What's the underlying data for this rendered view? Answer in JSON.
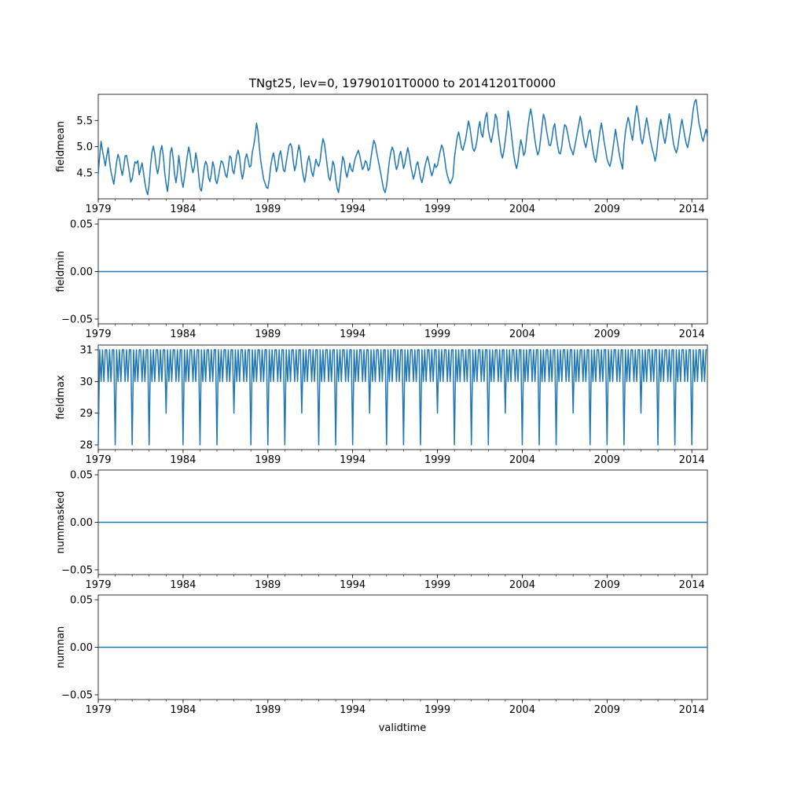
{
  "figure": {
    "title": "TNgt25, lev=0, 19790101T0000 to 20141201T0000",
    "xlabel": "validtime",
    "line_color": "#1f77b4"
  },
  "chart_data": [
    {
      "type": "line",
      "ylabel": "fieldmean",
      "x_range": [
        "1979-01",
        "2014-12"
      ],
      "xticks": [
        "1979",
        "1984",
        "1989",
        "1994",
        "1999",
        "2004",
        "2009",
        "2014"
      ],
      "yticks": [
        "4.5",
        "5.0",
        "5.5"
      ],
      "ylim": [
        4.0,
        6.0
      ],
      "series": [
        {
          "x_start": "1979-01",
          "x_step": "1 month",
          "values": [
            4.48,
            4.82,
            5.1,
            4.92,
            4.78,
            4.63,
            4.82,
            4.98,
            4.71,
            4.52,
            4.4,
            4.28,
            4.49,
            4.71,
            4.85,
            4.76,
            4.58,
            4.45,
            4.6,
            4.82,
            4.83,
            4.68,
            4.51,
            4.32,
            4.38,
            4.56,
            4.71,
            4.68,
            4.73,
            4.46,
            4.58,
            4.69,
            4.51,
            4.31,
            4.16,
            4.08,
            4.28,
            4.64,
            4.89,
            5.01,
            4.86,
            4.62,
            4.48,
            4.63,
            4.91,
            5.02,
            4.83,
            4.51,
            4.29,
            4.14,
            4.4,
            4.88,
            4.98,
            4.78,
            4.47,
            4.31,
            4.51,
            4.83,
            4.61,
            4.35,
            4.22,
            4.41,
            4.61,
            4.82,
            4.99,
            4.86,
            4.63,
            4.5,
            4.61,
            4.88,
            4.73,
            4.46,
            4.2,
            4.15,
            4.36,
            4.6,
            4.72,
            4.65,
            4.41,
            4.33,
            4.48,
            4.71,
            4.61,
            4.36,
            4.29,
            4.42,
            4.58,
            4.73,
            4.7,
            4.6,
            4.46,
            4.41,
            4.6,
            4.82,
            4.79,
            4.55,
            4.48,
            4.66,
            4.84,
            4.93,
            4.8,
            4.53,
            4.38,
            4.52,
            4.77,
            4.86,
            4.75,
            4.61,
            4.63,
            4.89,
            5.02,
            5.2,
            5.45,
            5.29,
            4.98,
            4.72,
            4.55,
            4.38,
            4.3,
            4.22,
            4.2,
            4.37,
            4.62,
            4.78,
            4.88,
            4.72,
            4.52,
            4.61,
            4.83,
            4.92,
            4.75,
            4.55,
            4.52,
            4.7,
            4.87,
            5.02,
            5.06,
            4.98,
            4.71,
            4.54,
            4.66,
            4.87,
            5.03,
            4.9,
            4.62,
            4.45,
            4.32,
            4.48,
            4.71,
            4.82,
            4.69,
            4.51,
            4.43,
            4.59,
            4.76,
            4.67,
            4.62,
            4.73,
            4.98,
            5.15,
            5.06,
            4.86,
            4.63,
            4.42,
            4.35,
            4.51,
            4.72,
            4.64,
            4.38,
            4.21,
            4.12,
            4.32,
            4.58,
            4.81,
            4.73,
            4.52,
            4.41,
            4.54,
            4.68,
            4.56,
            4.52,
            4.68,
            4.79,
            4.86,
            4.93,
            4.83,
            4.69,
            4.56,
            4.62,
            4.73,
            4.69,
            4.54,
            4.58,
            4.79,
            4.97,
            5.12,
            5.05,
            4.89,
            4.75,
            4.61,
            4.47,
            4.31,
            4.18,
            4.12,
            4.25,
            4.49,
            4.73,
            4.89,
            4.99,
            4.92,
            4.71,
            4.56,
            4.64,
            4.82,
            4.91,
            4.76,
            4.58,
            4.68,
            4.84,
            4.98,
            4.85,
            4.65,
            4.51,
            4.38,
            4.48,
            4.64,
            4.71,
            4.57,
            4.4,
            4.31,
            4.43,
            4.6,
            4.72,
            4.81,
            4.69,
            4.55,
            4.44,
            4.53,
            4.67,
            4.6,
            4.64,
            4.78,
            4.92,
            5.03,
            4.96,
            4.79,
            4.58,
            4.45,
            4.36,
            4.29,
            4.35,
            4.42,
            4.78,
            4.99,
            5.18,
            5.28,
            5.14,
            4.98,
            4.93,
            5.04,
            5.15,
            5.33,
            5.49,
            5.36,
            5.16,
            4.97,
            4.91,
            4.98,
            5.12,
            5.35,
            5.48,
            5.25,
            5.18,
            5.38,
            5.57,
            5.65,
            5.32,
            5.18,
            5.08,
            5.22,
            5.38,
            5.62,
            5.55,
            5.28,
            5.08,
            4.88,
            4.78,
            4.92,
            5.12,
            5.35,
            5.68,
            5.54,
            5.32,
            5.08,
            4.84,
            4.68,
            4.58,
            4.72,
            4.95,
            5.13,
            5.01,
            4.83,
            4.89,
            5.14,
            5.38,
            5.58,
            5.72,
            5.56,
            5.33,
            5.12,
            4.95,
            4.84,
            4.92,
            5.15,
            5.39,
            5.62,
            5.53,
            5.34,
            5.18,
            5.03,
            5.02,
            5.15,
            5.36,
            5.44,
            5.2,
            5.02,
            4.88,
            4.86,
            5.01,
            5.25,
            5.42,
            5.39,
            5.27,
            5.12,
            4.98,
            4.92,
            4.84,
            4.98,
            5.12,
            5.28,
            5.42,
            5.58,
            5.46,
            5.22,
            5.08,
            4.98,
            5.12,
            5.28,
            5.32,
            5.11,
            4.93,
            4.78,
            4.7,
            4.88,
            5.08,
            5.3,
            5.45,
            5.28,
            5.08,
            4.93,
            4.76,
            4.68,
            4.62,
            4.74,
            4.92,
            5.13,
            5.33,
            5.15,
            4.97,
            4.8,
            4.68,
            4.57,
            5.02,
            5.28,
            5.44,
            5.56,
            5.43,
            5.25,
            5.12,
            5.35,
            5.6,
            5.78,
            5.62,
            5.39,
            5.15,
            5.05,
            5.2,
            5.38,
            5.55,
            5.4,
            5.22,
            5.08,
            4.95,
            4.85,
            4.72,
            4.86,
            5.12,
            5.34,
            5.52,
            5.36,
            5.18,
            5.06,
            5.22,
            5.43,
            5.63,
            5.48,
            5.26,
            5.06,
            4.95,
            4.88,
            4.98,
            5.18,
            5.38,
            5.52,
            5.36,
            5.2,
            5.06,
            4.98,
            5.12,
            5.28,
            5.48,
            5.72,
            5.86,
            5.9,
            5.68,
            5.45,
            5.33,
            5.18,
            5.1,
            5.22,
            5.33,
            5.2
          ]
        }
      ]
    },
    {
      "type": "line",
      "ylabel": "fieldmin",
      "x_range": [
        "1979-01",
        "2014-12"
      ],
      "xticks": [
        "1979",
        "1984",
        "1989",
        "1994",
        "1999",
        "2004",
        "2009",
        "2014"
      ],
      "yticks": [
        "−0.05",
        "0.00",
        "0.05"
      ],
      "ylim": [
        -0.055,
        0.055
      ],
      "series": [
        {
          "x_start": "1979-01",
          "x_step": "1 month",
          "constant": 0.0
        }
      ]
    },
    {
      "type": "line",
      "ylabel": "fieldmax",
      "x_range": [
        "1979-01",
        "2014-12"
      ],
      "xticks": [
        "1979",
        "1984",
        "1989",
        "1994",
        "1999",
        "2004",
        "2009",
        "2014"
      ],
      "yticks": [
        "28",
        "29",
        "30",
        "31"
      ],
      "ylim": [
        27.85,
        31.15
      ],
      "series": [
        {
          "x_start": "1979-01",
          "x_step": "1 month",
          "description_pattern": "monthly day-count: 31/30 alternating, February dips to 28 or 29",
          "values": [
            28,
            31,
            30,
            31,
            30,
            31,
            31,
            30,
            31,
            30,
            31,
            31,
            28,
            31,
            30,
            31,
            30,
            31,
            31,
            30,
            31,
            30,
            31,
            31,
            28,
            31,
            30,
            31,
            30,
            31,
            31,
            30,
            31,
            30,
            31,
            31,
            28,
            31,
            30,
            31,
            30,
            31,
            31,
            30,
            31,
            30,
            31,
            31,
            29,
            31,
            30,
            31,
            30,
            31,
            31,
            30,
            31,
            30,
            31,
            31,
            28,
            31,
            30,
            31,
            30,
            31,
            31,
            30,
            31,
            30,
            31,
            31,
            28,
            31,
            30,
            31,
            30,
            31,
            31,
            30,
            31,
            30,
            31,
            31,
            28,
            31,
            30,
            31,
            30,
            31,
            31,
            30,
            31,
            30,
            31,
            31,
            29,
            31,
            30,
            31,
            30,
            31,
            31,
            30,
            31,
            30,
            31,
            31,
            28,
            31,
            30,
            31,
            30,
            31,
            31,
            30,
            31,
            30,
            31,
            31,
            28,
            31,
            30,
            31,
            30,
            31,
            31,
            30,
            31,
            30,
            31,
            31,
            28,
            31,
            30,
            31,
            30,
            31,
            31,
            30,
            31,
            30,
            31,
            31,
            29,
            31,
            30,
            31,
            30,
            31,
            31,
            30,
            31,
            30,
            31,
            31,
            28,
            31,
            30,
            31,
            30,
            31,
            31,
            30,
            31,
            30,
            31,
            31,
            28,
            31,
            30,
            31,
            30,
            31,
            31,
            30,
            31,
            30,
            31,
            31,
            28,
            31,
            30,
            31,
            30,
            31,
            31,
            30,
            31,
            30,
            31,
            31,
            29,
            31,
            30,
            31,
            30,
            31,
            31,
            30,
            31,
            30,
            31,
            31,
            28,
            31,
            30,
            31,
            30,
            31,
            31,
            30,
            31,
            30,
            31,
            31,
            28,
            31,
            30,
            31,
            30,
            31,
            31,
            30,
            31,
            30,
            31,
            31,
            28,
            31,
            30,
            31,
            30,
            31,
            31,
            30,
            31,
            30,
            31,
            31,
            29,
            31,
            30,
            31,
            30,
            31,
            31,
            30,
            31,
            30,
            31,
            31,
            28,
            31,
            30,
            31,
            30,
            31,
            31,
            30,
            31,
            30,
            31,
            31,
            28,
            31,
            30,
            31,
            30,
            31,
            31,
            30,
            31,
            30,
            31,
            31,
            28,
            31,
            30,
            31,
            30,
            31,
            31,
            30,
            31,
            30,
            31,
            31,
            29,
            31,
            30,
            31,
            30,
            31,
            31,
            30,
            31,
            30,
            31,
            31,
            28,
            31,
            30,
            31,
            30,
            31,
            31,
            30,
            31,
            30,
            31,
            31,
            28,
            31,
            30,
            31,
            30,
            31,
            31,
            30,
            31,
            30,
            31,
            31,
            28,
            31,
            30,
            31,
            30,
            31,
            31,
            30,
            31,
            30,
            31,
            31,
            29,
            31,
            30,
            31,
            30,
            31,
            31,
            30,
            31,
            30,
            31,
            31,
            28,
            31,
            30,
            31,
            30,
            31,
            31,
            30,
            31,
            30,
            31,
            31,
            28,
            31,
            30,
            31,
            30,
            31,
            31,
            30,
            31,
            30,
            31,
            31,
            28,
            31,
            30,
            31,
            30,
            31,
            31,
            30,
            31,
            30,
            31,
            31,
            29,
            31,
            30,
            31,
            30,
            31,
            31,
            30,
            31,
            30,
            31,
            31,
            28,
            31,
            30,
            31,
            30,
            31,
            31,
            30,
            31,
            30,
            31,
            31,
            28,
            31,
            30,
            31,
            30,
            31,
            31,
            30,
            31,
            30,
            31,
            31,
            28,
            31,
            30,
            31,
            30,
            31,
            31,
            30,
            31,
            30,
            31,
            31
          ]
        }
      ]
    },
    {
      "type": "line",
      "ylabel": "nummasked",
      "x_range": [
        "1979-01",
        "2014-12"
      ],
      "xticks": [
        "1979",
        "1984",
        "1989",
        "1994",
        "1999",
        "2004",
        "2009",
        "2014"
      ],
      "yticks": [
        "−0.05",
        "0.00",
        "0.05"
      ],
      "ylim": [
        -0.055,
        0.055
      ],
      "series": [
        {
          "x_start": "1979-01",
          "x_step": "1 month",
          "constant": 0.0
        }
      ]
    },
    {
      "type": "line",
      "ylabel": "numnan",
      "x_range": [
        "1979-01",
        "2014-12"
      ],
      "xticks": [
        "1979",
        "1984",
        "1989",
        "1994",
        "1999",
        "2004",
        "2009",
        "2014"
      ],
      "yticks": [
        "−0.05",
        "0.00",
        "0.05"
      ],
      "ylim": [
        -0.055,
        0.055
      ],
      "series": [
        {
          "x_start": "1979-01",
          "x_step": "1 month",
          "constant": 0.0
        }
      ]
    }
  ]
}
